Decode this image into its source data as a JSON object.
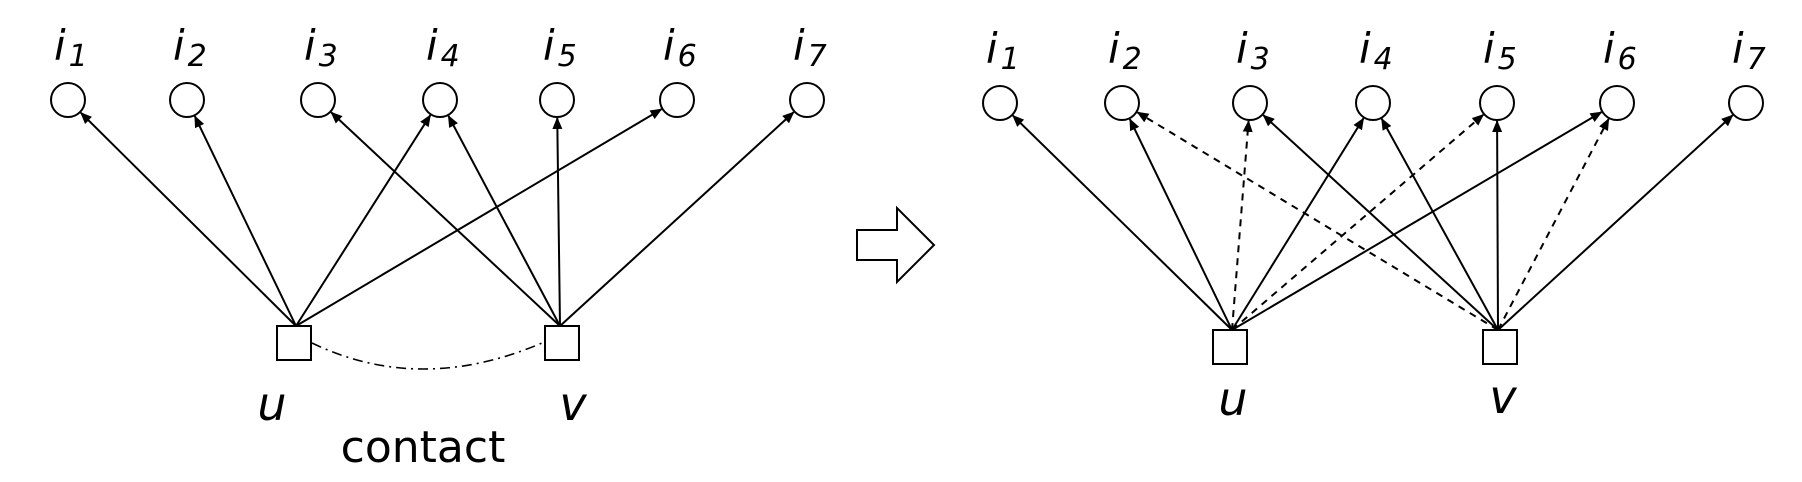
{
  "left_graph": {
    "items": [
      {
        "id": "i1",
        "main": "i",
        "sub": "1"
      },
      {
        "id": "i2",
        "main": "i",
        "sub": "2"
      },
      {
        "id": "i3",
        "main": "i",
        "sub": "3"
      },
      {
        "id": "i4",
        "main": "i",
        "sub": "4"
      },
      {
        "id": "i5",
        "main": "i",
        "sub": "5"
      },
      {
        "id": "i6",
        "main": "i",
        "sub": "6"
      },
      {
        "id": "i7",
        "main": "i",
        "sub": "7"
      }
    ],
    "users": [
      {
        "id": "u",
        "label": "u"
      },
      {
        "id": "v",
        "label": "v"
      }
    ],
    "edges": [
      {
        "from": "u",
        "to": "i1"
      },
      {
        "from": "u",
        "to": "i2"
      },
      {
        "from": "u",
        "to": "i4"
      },
      {
        "from": "u",
        "to": "i6"
      },
      {
        "from": "v",
        "to": "i3"
      },
      {
        "from": "v",
        "to": "i4"
      },
      {
        "from": "v",
        "to": "i5"
      },
      {
        "from": "v",
        "to": "i7"
      }
    ],
    "contact_label": "contact"
  },
  "transition_arrow": "right-block-arrow-icon",
  "right_graph": {
    "items": [
      {
        "id": "i1",
        "main": "i",
        "sub": "1"
      },
      {
        "id": "i2",
        "main": "i",
        "sub": "2"
      },
      {
        "id": "i3",
        "main": "i",
        "sub": "3"
      },
      {
        "id": "i4",
        "main": "i",
        "sub": "4"
      },
      {
        "id": "i5",
        "main": "i",
        "sub": "5"
      },
      {
        "id": "i6",
        "main": "i",
        "sub": "6"
      },
      {
        "id": "i7",
        "main": "i",
        "sub": "7"
      }
    ],
    "users": [
      {
        "id": "u",
        "label": "u"
      },
      {
        "id": "v",
        "label": "v"
      }
    ],
    "edges": [
      {
        "from": "u",
        "to": "i1",
        "style": "solid"
      },
      {
        "from": "u",
        "to": "i2",
        "style": "solid"
      },
      {
        "from": "u",
        "to": "i4",
        "style": "solid"
      },
      {
        "from": "u",
        "to": "i6",
        "style": "solid"
      },
      {
        "from": "u",
        "to": "i3",
        "style": "dashed"
      },
      {
        "from": "u",
        "to": "i5",
        "style": "dashed"
      },
      {
        "from": "v",
        "to": "i3",
        "style": "solid"
      },
      {
        "from": "v",
        "to": "i4",
        "style": "solid"
      },
      {
        "from": "v",
        "to": "i5",
        "style": "solid"
      },
      {
        "from": "v",
        "to": "i7",
        "style": "solid"
      },
      {
        "from": "v",
        "to": "i2",
        "style": "dashed"
      },
      {
        "from": "v",
        "to": "i6",
        "style": "dashed"
      }
    ]
  }
}
